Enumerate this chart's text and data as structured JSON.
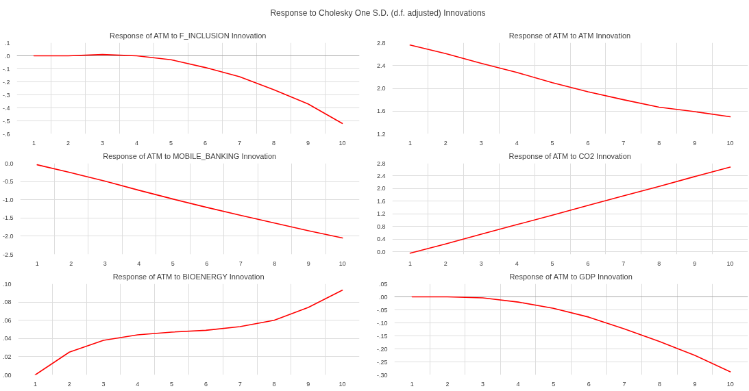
{
  "chart_data": [
    {
      "type": "line",
      "title": "Response of ATM to F_INCLUSION Innovation",
      "annotations": [
        "Response to Cholesky One S.D. (d.f. adjusted) Innovations"
      ],
      "categories": [
        "1",
        "2",
        "3",
        "4",
        "5",
        "6",
        "7",
        "8",
        "9",
        "10"
      ],
      "values": [
        0.0,
        0.0,
        0.01,
        0.0,
        -0.03,
        -0.09,
        -0.16,
        -0.26,
        -0.37,
        -0.52
      ],
      "color": "#ff0000",
      "ylim": [
        -0.6,
        0.1
      ],
      "yticks": [
        {
          "value": 0.1,
          "label": ".1"
        },
        {
          "value": 0.0,
          "label": ".0"
        },
        {
          "value": -0.1,
          "label": "-.1"
        },
        {
          "value": -0.2,
          "label": "-.2"
        },
        {
          "value": -0.3,
          "label": "-.3"
        },
        {
          "value": -0.4,
          "label": "-.4"
        },
        {
          "value": -0.5,
          "label": "-.5"
        },
        {
          "value": -0.6,
          "label": "-.6"
        }
      ],
      "grid": true,
      "ref_lines": [
        {
          "axis": "y",
          "value": 0.0,
          "color": "#a6a6a6"
        }
      ]
    },
    {
      "type": "line",
      "title": "Response of ATM to ATM Innovation",
      "categories": [
        "1",
        "2",
        "3",
        "4",
        "5",
        "6",
        "7",
        "8",
        "9",
        "10"
      ],
      "values": [
        2.76,
        2.61,
        2.44,
        2.28,
        2.1,
        1.94,
        1.8,
        1.67,
        1.59,
        1.5
      ],
      "color": "#ff0000",
      "ylim": [
        1.2,
        2.8
      ],
      "yticks": [
        2.8,
        2.4,
        {
          "value": 2.0,
          "label": "2.0"
        },
        1.6,
        1.2
      ],
      "grid": true
    },
    {
      "type": "line",
      "title": "Response of ATM to MOBILE_BANKING Innovation",
      "categories": [
        "1",
        "2",
        "3",
        "4",
        "5",
        "6",
        "7",
        "8",
        "9",
        "10"
      ],
      "values": [
        -0.04,
        -0.26,
        -0.49,
        -0.74,
        -0.98,
        -1.21,
        -1.43,
        -1.64,
        -1.85,
        -2.05
      ],
      "color": "#ff0000",
      "ylim": [
        -2.5,
        0.0
      ],
      "yticks": [
        {
          "value": 0.0,
          "label": "0.0"
        },
        -0.5,
        {
          "value": -1.0,
          "label": "-1.0"
        },
        -1.5,
        {
          "value": -2.0,
          "label": "-2.0"
        },
        -2.5
      ],
      "grid": true
    },
    {
      "type": "line",
      "title": "Response of ATM to CO2 Innovation",
      "categories": [
        "1",
        "2",
        "3",
        "4",
        "5",
        "6",
        "7",
        "8",
        "9",
        "10"
      ],
      "values": [
        -0.04,
        0.25,
        0.56,
        0.86,
        1.16,
        1.47,
        1.77,
        2.07,
        2.38,
        2.68
      ],
      "color": "#ff0000",
      "ylim": [
        -0.08,
        2.8
      ],
      "yticks": [
        2.8,
        2.4,
        {
          "value": 2.0,
          "label": "2.0"
        },
        1.6,
        1.2,
        0.8,
        0.4,
        {
          "value": 0.0,
          "label": "0.0"
        }
      ],
      "grid": true
    },
    {
      "type": "line",
      "title": "Response of ATM to BIOENERGY Innovation",
      "categories": [
        "1",
        "2",
        "3",
        "4",
        "5",
        "6",
        "7",
        "8",
        "9",
        "10"
      ],
      "values": [
        0.0,
        0.025,
        0.038,
        0.044,
        0.047,
        0.049,
        0.053,
        0.06,
        0.074,
        0.093
      ],
      "color": "#ff0000",
      "ylim": [
        0.0,
        0.1
      ],
      "yticks": [
        {
          "value": 0.1,
          "label": ".10"
        },
        {
          "value": 0.08,
          "label": ".08"
        },
        {
          "value": 0.06,
          "label": ".06"
        },
        {
          "value": 0.04,
          "label": ".04"
        },
        {
          "value": 0.02,
          "label": ".02"
        },
        {
          "value": 0.0,
          "label": ".00"
        }
      ],
      "grid": true
    },
    {
      "type": "line",
      "title": "Response of ATM to GDP Innovation",
      "categories": [
        "1",
        "2",
        "3",
        "4",
        "5",
        "6",
        "7",
        "8",
        "9",
        "10"
      ],
      "values": [
        0.0,
        0.0,
        -0.004,
        -0.02,
        -0.044,
        -0.078,
        -0.123,
        -0.172,
        -0.225,
        -0.288
      ],
      "color": "#ff0000",
      "ylim": [
        -0.3,
        0.05
      ],
      "yticks": [
        {
          "value": 0.05,
          "label": ".05"
        },
        {
          "value": 0.0,
          "label": ".00"
        },
        {
          "value": -0.05,
          "label": "-.05"
        },
        {
          "value": -0.1,
          "label": "-.10"
        },
        {
          "value": -0.15,
          "label": "-.15"
        },
        {
          "value": -0.2,
          "label": "-.20"
        },
        {
          "value": -0.25,
          "label": "-.25"
        },
        {
          "value": -0.3,
          "label": "-.30"
        }
      ],
      "grid": true,
      "ref_lines": [
        {
          "axis": "y",
          "value": 0.0,
          "color": "#a6a6a6"
        }
      ]
    }
  ]
}
